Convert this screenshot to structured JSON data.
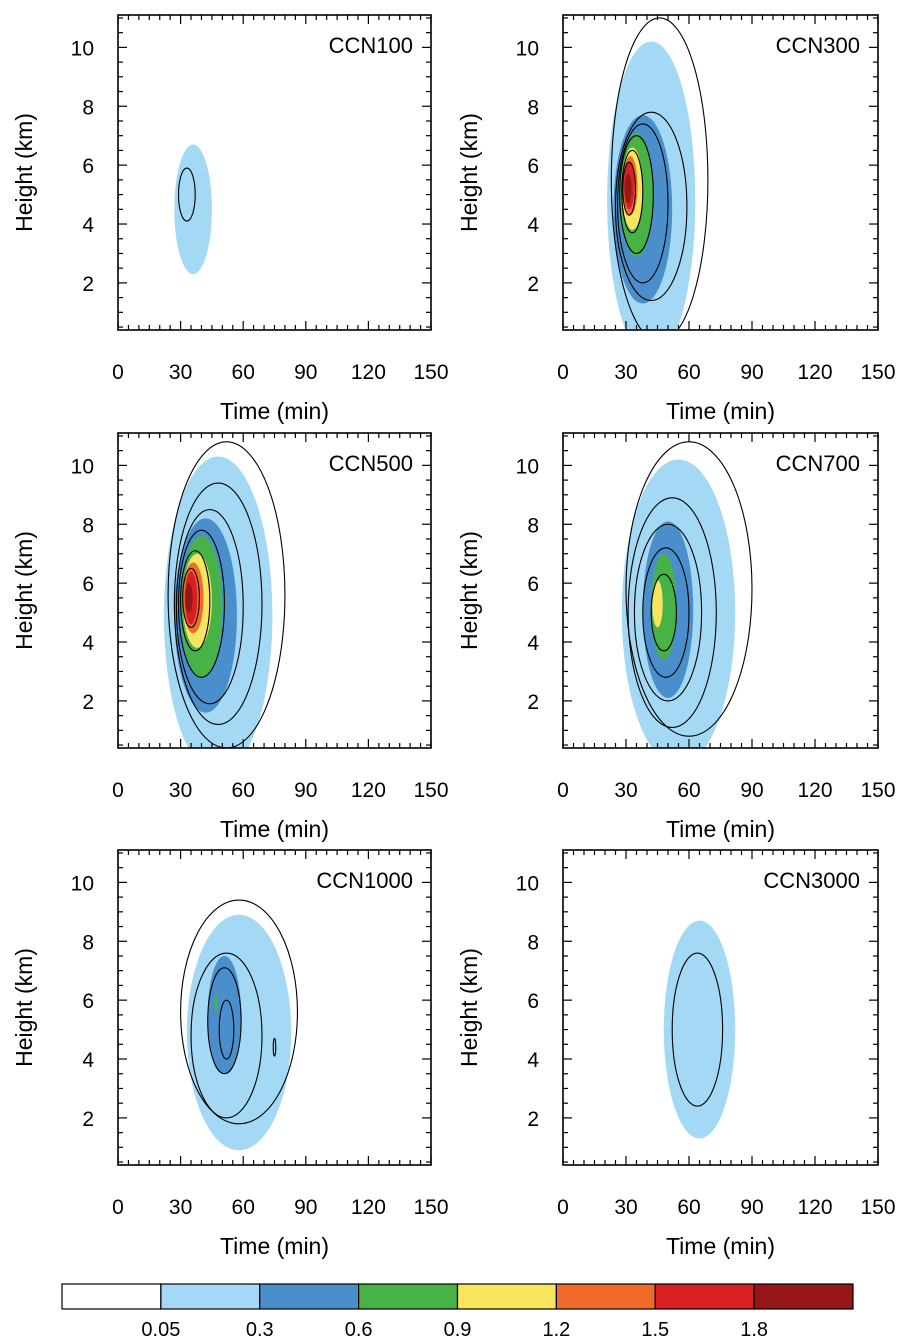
{
  "chart_data": {
    "type": "contour",
    "panels": [
      {
        "label": "CCN100",
        "xlabel": "Time (min)",
        "ylabel": "Height (km)",
        "xlim": [
          0,
          150
        ],
        "ylim": [
          0.4,
          11.1
        ],
        "xticks": [
          0,
          30,
          60,
          90,
          120,
          150
        ],
        "yticks": [
          2,
          4,
          6,
          8,
          10
        ],
        "filled": [
          {
            "level": 0.05,
            "center": [
              36,
              4.5
            ],
            "rx": 9,
            "ry": 2.2
          }
        ],
        "lines": [
          {
            "center": [
              33,
              5.0
            ],
            "rx": 4,
            "ry": 0.9
          }
        ]
      },
      {
        "label": "CCN300",
        "xlabel": "Time (min)",
        "ylabel": "Height (km)",
        "xlim": [
          0,
          150
        ],
        "ylim": [
          0.4,
          11.1
        ],
        "xticks": [
          0,
          30,
          60,
          90,
          120,
          150
        ],
        "yticks": [
          2,
          4,
          6,
          8,
          10
        ],
        "filled": [
          {
            "level": 0.05,
            "center": [
              42,
              4.8
            ],
            "rx": 21,
            "ry": 5.4
          },
          {
            "level": 0.3,
            "center": [
              38,
              4.5
            ],
            "rx": 14,
            "ry": 3.2
          },
          {
            "level": 0.6,
            "center": [
              35,
              5.0
            ],
            "rx": 8,
            "ry": 2.1
          },
          {
            "level": 0.9,
            "center": [
              33,
              5.2
            ],
            "rx": 5,
            "ry": 1.4
          },
          {
            "level": 1.2,
            "center": [
              32,
              5.3
            ],
            "rx": 3.5,
            "ry": 1.0
          },
          {
            "level": 1.5,
            "center": [
              31.5,
              5.3
            ],
            "rx": 2.5,
            "ry": 0.8
          },
          {
            "level": 1.8,
            "center": [
              31,
              5.2
            ],
            "rx": 1.6,
            "ry": 0.5
          }
        ],
        "lines": [
          {
            "center": [
              46,
              5.5
            ],
            "rx": 23,
            "ry": 5.5
          },
          {
            "center": [
              42,
              4.6
            ],
            "rx": 17,
            "ry": 3.2
          },
          {
            "center": [
              38,
              4.7
            ],
            "rx": 12,
            "ry": 2.7
          },
          {
            "center": [
              35,
              5.0
            ],
            "rx": 8,
            "ry": 2.0
          },
          {
            "center": [
              33,
              5.1
            ],
            "rx": 5,
            "ry": 1.4
          },
          {
            "center": [
              31.5,
              5.2
            ],
            "rx": 3,
            "ry": 0.9
          }
        ]
      },
      {
        "label": "CCN500",
        "xlabel": "Time (min)",
        "ylabel": "Height (km)",
        "xlim": [
          0,
          150
        ],
        "ylim": [
          0.4,
          11.1
        ],
        "xticks": [
          0,
          30,
          60,
          90,
          120,
          150
        ],
        "yticks": [
          2,
          4,
          6,
          8,
          10
        ],
        "filled": [
          {
            "level": 0.05,
            "center": [
              48,
              4.9
            ],
            "rx": 26,
            "ry": 5.4
          },
          {
            "level": 0.3,
            "center": [
              42,
              4.9
            ],
            "rx": 15,
            "ry": 3.3
          },
          {
            "level": 0.6,
            "center": [
              40,
              5.2
            ],
            "rx": 10,
            "ry": 2.4
          },
          {
            "level": 0.9,
            "center": [
              38,
              5.4
            ],
            "rx": 7,
            "ry": 1.6
          },
          {
            "level": 1.2,
            "center": [
              36,
              5.5
            ],
            "rx": 5,
            "ry": 1.2
          },
          {
            "level": 1.5,
            "center": [
              35,
              5.5
            ],
            "rx": 3,
            "ry": 0.9
          },
          {
            "level": 1.8,
            "center": [
              34,
              5.5
            ],
            "rx": 1.8,
            "ry": 0.5
          }
        ],
        "lines": [
          {
            "center": [
              52,
              5.6
            ],
            "rx": 28,
            "ry": 5.2
          },
          {
            "center": [
              48,
              5.3
            ],
            "rx": 21,
            "ry": 4.1
          },
          {
            "center": [
              44,
              5.2
            ],
            "rx": 16,
            "ry": 3.3
          },
          {
            "center": [
              40,
              5.3
            ],
            "rx": 11,
            "ry": 2.5
          },
          {
            "center": [
              37,
              5.4
            ],
            "rx": 7,
            "ry": 1.7
          },
          {
            "center": [
              35,
              5.5
            ],
            "rx": 4,
            "ry": 1.0
          }
        ]
      },
      {
        "label": "CCN700",
        "xlabel": "Time (min)",
        "ylabel": "Height (km)",
        "xlim": [
          0,
          150
        ],
        "ylim": [
          0.4,
          11.1
        ],
        "xticks": [
          0,
          30,
          60,
          90,
          120,
          150
        ],
        "yticks": [
          2,
          4,
          6,
          8,
          10
        ],
        "filled": [
          {
            "level": 0.05,
            "center": [
              55,
              5.0
            ],
            "rx": 27,
            "ry": 5.2
          },
          {
            "level": 0.3,
            "center": [
              50,
              5.1
            ],
            "rx": 12,
            "ry": 3.0
          },
          {
            "level": 0.6,
            "center": [
              48,
              5.2
            ],
            "rx": 6,
            "ry": 1.8
          },
          {
            "level": 0.9,
            "center": [
              45,
              5.3
            ],
            "rx": 2.5,
            "ry": 0.8
          }
        ],
        "lines": [
          {
            "center": [
              60,
              5.8
            ],
            "rx": 30,
            "ry": 5.0
          },
          {
            "center": [
              52,
              5.0
            ],
            "rx": 21,
            "ry": 3.9
          },
          {
            "center": [
              50,
              5.0
            ],
            "rx": 16,
            "ry": 3.0
          },
          {
            "center": [
              49,
              5.0
            ],
            "rx": 11,
            "ry": 2.2
          },
          {
            "center": [
              48,
              5.0
            ],
            "rx": 6,
            "ry": 1.3
          }
        ]
      },
      {
        "label": "CCN1000",
        "xlabel": "Time (min)",
        "ylabel": "Height (km)",
        "xlim": [
          0,
          150
        ],
        "ylim": [
          0.4,
          11.1
        ],
        "xticks": [
          0,
          30,
          60,
          90,
          120,
          150
        ],
        "yticks": [
          2,
          4,
          6,
          8,
          10
        ],
        "filled": [
          {
            "level": 0.05,
            "center": [
              58,
              4.9
            ],
            "rx": 25,
            "ry": 4.0
          },
          {
            "level": 0.3,
            "center": [
              51,
              5.5
            ],
            "rx": 8,
            "ry": 2.0
          },
          {
            "level": 0.6,
            "center": [
              47,
              5.9
            ],
            "rx": 0.8,
            "ry": 0.3
          }
        ],
        "lines": [
          {
            "center": [
              58,
              5.6
            ],
            "rx": 28,
            "ry": 3.8
          },
          {
            "center": [
              52,
              4.8
            ],
            "rx": 17,
            "ry": 2.8
          },
          {
            "center": [
              51,
              5.3
            ],
            "rx": 8,
            "ry": 1.8
          },
          {
            "center": [
              52,
              5.0
            ],
            "rx": 3.5,
            "ry": 1.0
          },
          {
            "center": [
              75,
              4.4
            ],
            "rx": 0.6,
            "ry": 0.3
          }
        ]
      },
      {
        "label": "CCN3000",
        "xlabel": "Time (min)",
        "ylabel": "Height (km)",
        "xlim": [
          0,
          150
        ],
        "ylim": [
          0.4,
          11.1
        ],
        "xticks": [
          0,
          30,
          60,
          90,
          120,
          150
        ],
        "yticks": [
          2,
          4,
          6,
          8,
          10
        ],
        "filled": [
          {
            "level": 0.05,
            "center": [
              65,
              5.0
            ],
            "rx": 17,
            "ry": 3.7
          }
        ],
        "lines": [
          {
            "center": [
              64,
              5.0
            ],
            "rx": 12,
            "ry": 2.6
          }
        ]
      }
    ],
    "colorbar": {
      "levels": [
        "0.05",
        "0.3",
        "0.6",
        "0.9",
        "1.2",
        "1.5",
        "1.8"
      ],
      "colors": [
        "#ffffff",
        "#a3d9f5",
        "#4a8fcc",
        "#47b347",
        "#f7e560",
        "#f26b2a",
        "#d92020",
        "#96161a"
      ]
    }
  }
}
